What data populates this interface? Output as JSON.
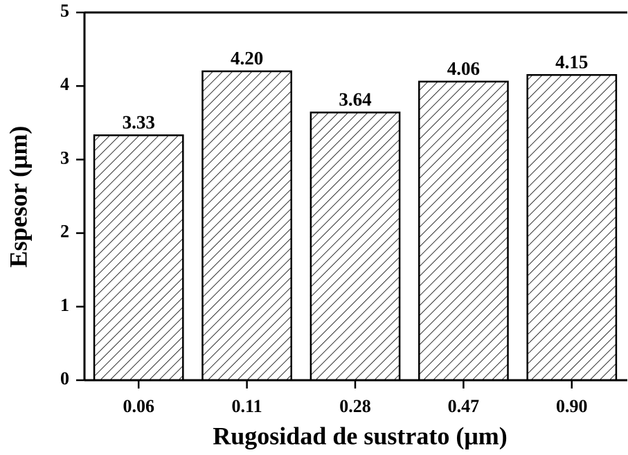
{
  "chart_data": {
    "type": "bar",
    "x_label": "Rugosidad de sustrato (μm)",
    "y_label": "Espesor (μm)",
    "categories": [
      "0.06",
      "0.11",
      "0.28",
      "0.47",
      "0.90"
    ],
    "values": [
      3.33,
      4.2,
      3.64,
      4.06,
      4.15
    ],
    "value_labels": [
      "3.33",
      "4.20",
      "3.64",
      "4.06",
      "4.15"
    ],
    "color": "#000000",
    "hatch": "diagonal",
    "ylim": [
      0,
      5
    ],
    "yticks": [
      0,
      1,
      2,
      3,
      4,
      5
    ],
    "grid": false
  }
}
